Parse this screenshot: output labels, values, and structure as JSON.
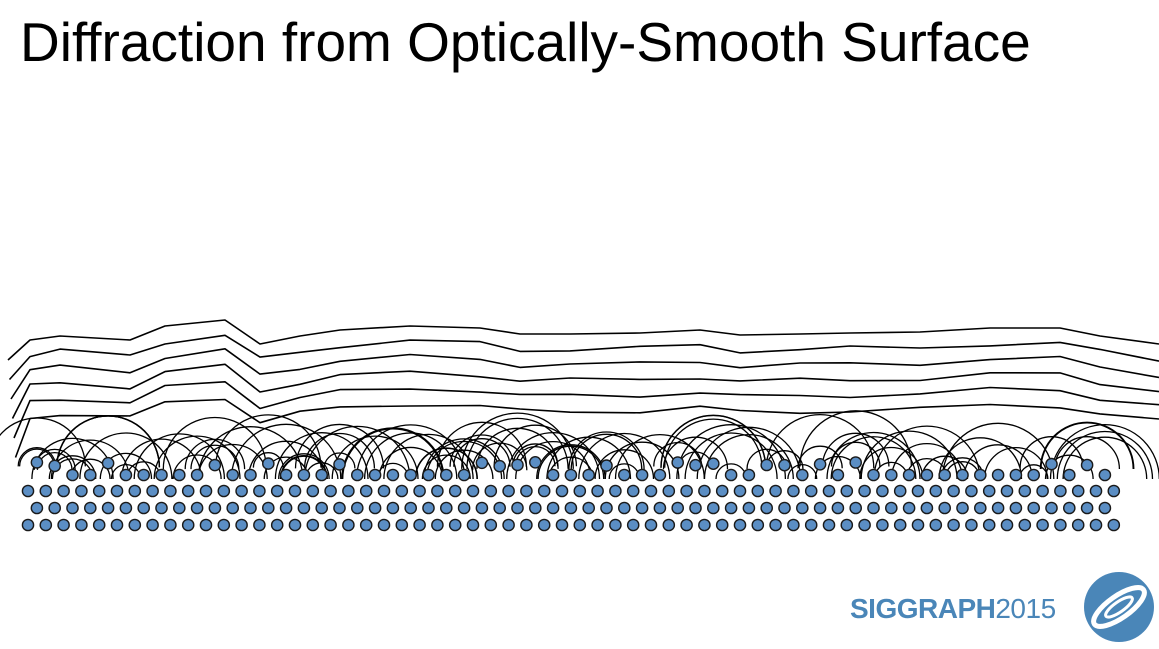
{
  "slide": {
    "title": "Diffraction from Optically-Smooth Surface"
  },
  "logo": {
    "name": "SIGGRAPH",
    "year": "2015",
    "color": "#4a86b8"
  },
  "diagram": {
    "atom_color": "#5b8ec4",
    "atom_stroke": "#1a1a1a",
    "wave_color": "#000000",
    "atom_rows": 4,
    "wavefront_count": 6
  }
}
